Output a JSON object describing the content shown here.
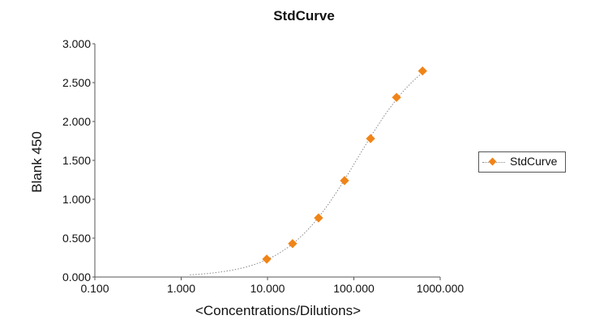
{
  "chart_data": {
    "type": "scatter",
    "title": "StdCurve",
    "xlabel": "<Concentrations/Dilutions>",
    "ylabel": "Blank 450",
    "xscale": "log",
    "xlim": [
      0.1,
      1000
    ],
    "ylim": [
      0,
      3
    ],
    "x_ticks": [
      "0.100",
      "1.000",
      "10.000",
      "100.000",
      "1000.000"
    ],
    "y_ticks": [
      "0.000",
      "0.500",
      "1.000",
      "1.500",
      "2.000",
      "2.500",
      "3.000"
    ],
    "grid": false,
    "legend_position": "right",
    "series": [
      {
        "name": "StdCurve",
        "color": "#f08418",
        "marker": "diamond",
        "line": "dotted smooth fit",
        "x": [
          9.8,
          19.5,
          39,
          78,
          156,
          312,
          625
        ],
        "y": [
          0.23,
          0.43,
          0.76,
          1.24,
          1.78,
          2.31,
          2.65
        ]
      }
    ]
  },
  "legend": {
    "label": "StdCurve"
  }
}
